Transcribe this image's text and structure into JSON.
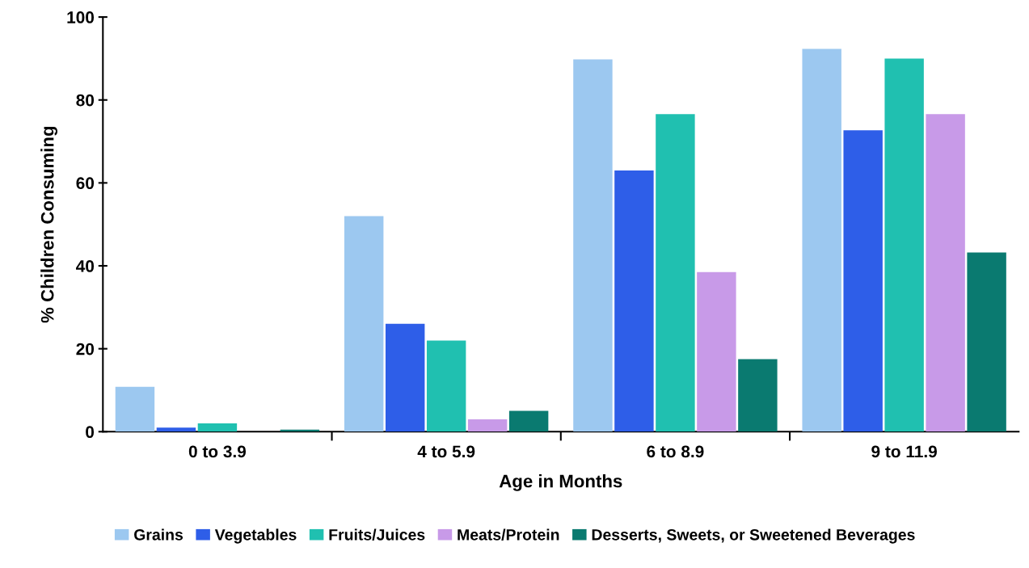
{
  "chart_data": {
    "type": "bar",
    "xlabel": "Age in Months",
    "ylabel": "% Children Consuming",
    "categories": [
      "0 to 3.9",
      "4 to 5.9",
      "6 to 8.9",
      "9 to 11.9"
    ],
    "series": [
      {
        "name": "Grains",
        "color": "#9cc8f0",
        "values": [
          10.8,
          52,
          89.8,
          92.3
        ]
      },
      {
        "name": "Vegetables",
        "color": "#2e5ee8",
        "values": [
          1,
          26,
          63,
          72.7
        ]
      },
      {
        "name": "Fruits/Juices",
        "color": "#20c0b0",
        "values": [
          2,
          22,
          76.6,
          90
        ]
      },
      {
        "name": "Meats/Protein",
        "color": "#c89ae8",
        "values": [
          0,
          3,
          38.5,
          76.6
        ]
      },
      {
        "name": "Desserts, Sweets, or Sweetened Beverages",
        "color": "#0a7a70",
        "values": [
          0.5,
          5,
          17.5,
          43.2
        ]
      }
    ],
    "ylim": [
      0,
      100
    ],
    "yticks": [
      0,
      20,
      40,
      60,
      80,
      100
    ],
    "grid": false,
    "legend": "bottom"
  }
}
